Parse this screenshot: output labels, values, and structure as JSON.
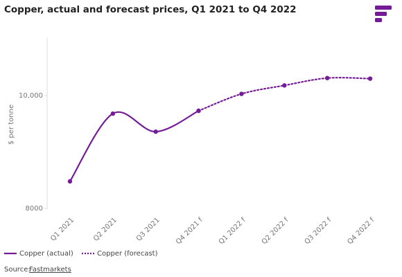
{
  "chart_data": {
    "type": "line",
    "title": "Copper, actual and forecast prices, Q1 2021 to Q4 2022",
    "y_label": "$ per tonne",
    "categories": [
      "Q1 2021",
      "Q2 2021",
      "Q3 2021",
      "Q4 2021 f",
      "Q1 2022 f",
      "Q2 2022 f",
      "Q3 2022 f",
      "Q4 2022 f"
    ],
    "series": [
      {
        "name": "Copper (actual)",
        "color": "#741b98",
        "values": [
          8480,
          9680,
          9360,
          9730,
          null,
          null,
          null,
          null
        ]
      },
      {
        "name": "Copper (forecast)",
        "color": "#741b98",
        "dashed": true,
        "values": [
          null,
          null,
          null,
          9730,
          10030,
          10180,
          10310,
          10300
        ]
      }
    ],
    "ylim": [
      8000,
      11000
    ],
    "yticks": [
      8000,
      {
        "value": 10000,
        "label": "10,000"
      }
    ],
    "grid": false,
    "source_label": "Source:",
    "source": "Fastmarkets"
  }
}
